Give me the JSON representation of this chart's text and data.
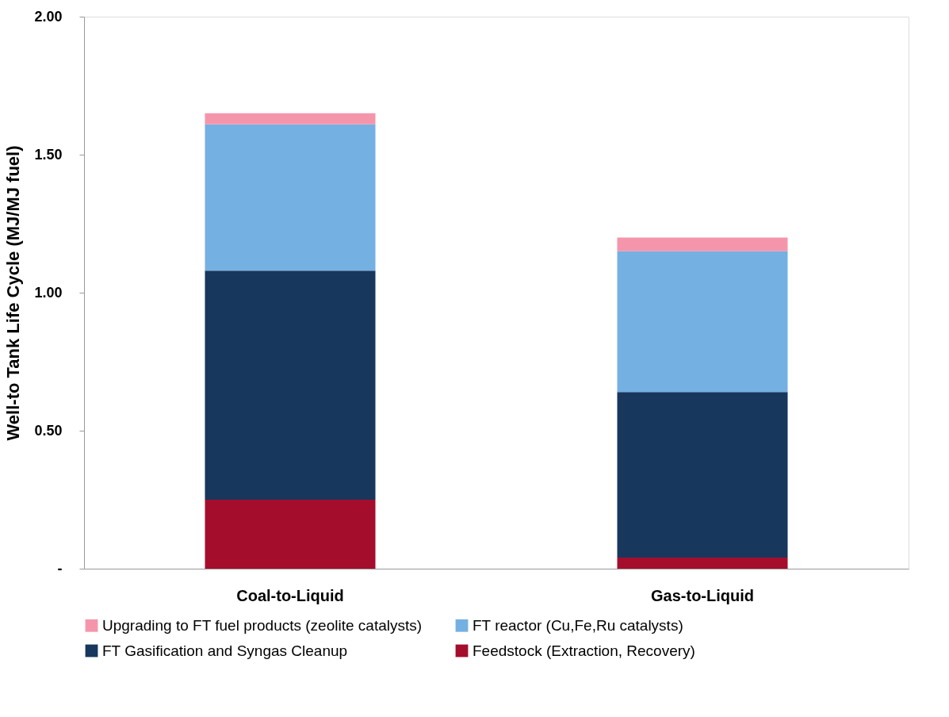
{
  "chart_data": {
    "type": "bar",
    "stacked": true,
    "ylabel": "Well-to Tank Life Cycle (MJ/MJ fuel)",
    "categories": [
      "Coal-to-Liquid",
      "Gas-to-Liquid"
    ],
    "series": [
      {
        "name": "Feedstock (Extraction, Recovery)",
        "color": "#a50d2c",
        "values": [
          0.25,
          0.04
        ]
      },
      {
        "name": "FT Gasification and  Syngas Cleanup",
        "color": "#17375d",
        "values": [
          0.83,
          0.6
        ]
      },
      {
        "name": "FT reactor (Cu,Fe,Ru catalysts)",
        "color": "#75b0e2",
        "values": [
          0.53,
          0.51
        ]
      },
      {
        "name": "Upgrading to FT fuel products (zeolite catalysts)",
        "color": "#f595ab",
        "values": [
          0.04,
          0.05
        ]
      }
    ],
    "ylim": [
      0,
      2
    ],
    "yticks": [
      {
        "value": 0,
        "label": "-"
      },
      {
        "value": 0.5,
        "label": "0.50"
      },
      {
        "value": 1,
        "label": "1.00"
      },
      {
        "value": 1.5,
        "label": "1.50"
      },
      {
        "value": 2,
        "label": "2.00"
      }
    ],
    "grid": false,
    "legend": "bottom"
  }
}
